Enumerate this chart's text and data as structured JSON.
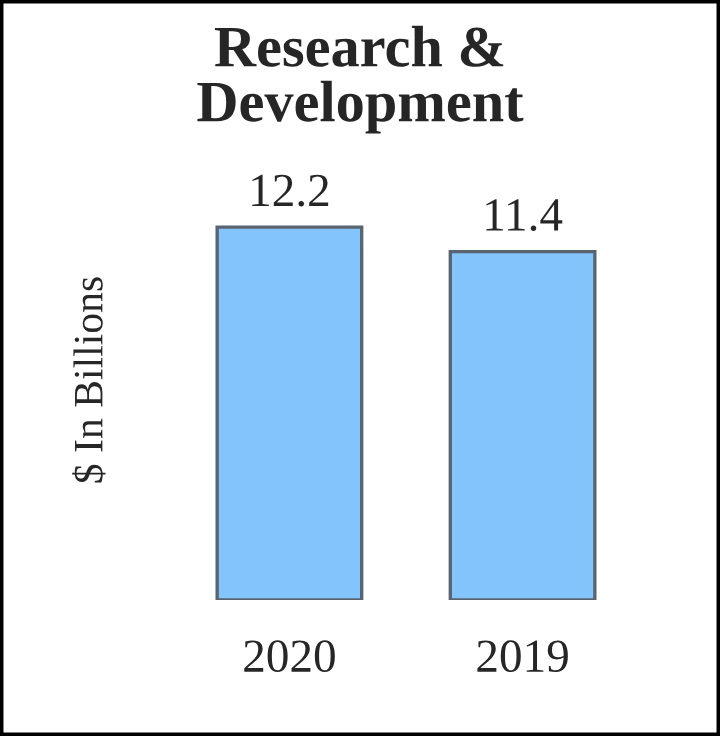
{
  "chart_data": {
    "type": "bar",
    "title": "Research &\nDevelopment",
    "ylabel": "$ In Billions",
    "categories": [
      "2020",
      "2019"
    ],
    "values": [
      12.2,
      11.4
    ],
    "color": "#82c4fb",
    "data_labels": true,
    "grid": false,
    "legend": false
  }
}
